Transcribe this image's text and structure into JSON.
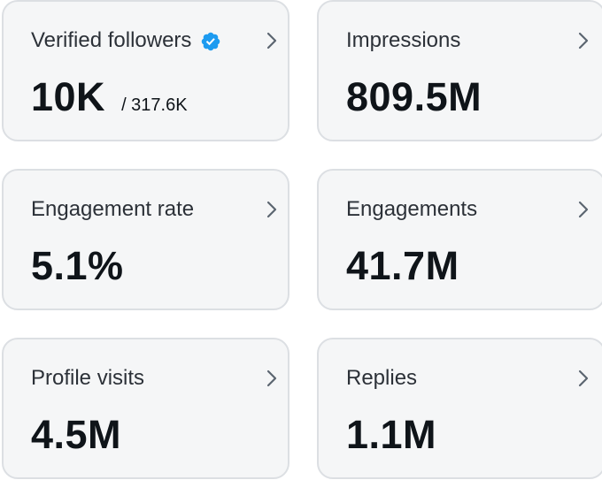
{
  "colors": {
    "card_background": "#f5f6f7",
    "card_border": "#dcdfe3",
    "title_text": "#2c3138",
    "value_text": "#0f1419",
    "chevron": "#5b6570",
    "verified_badge": "#1d9bf0"
  },
  "cards": [
    {
      "title": "Verified followers",
      "value": "10K",
      "subvalue": "/ 317.6K",
      "icon": "verified-badge-icon"
    },
    {
      "title": "Impressions",
      "value": "809.5M"
    },
    {
      "title": "Engagement rate",
      "value": "5.1%"
    },
    {
      "title": "Engagements",
      "value": "41.7M"
    },
    {
      "title": "Profile visits",
      "value": "4.5M"
    },
    {
      "title": "Replies",
      "value": "1.1M"
    }
  ]
}
